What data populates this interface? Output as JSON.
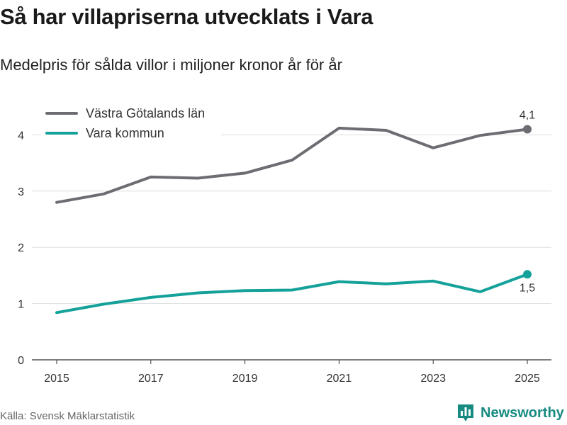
{
  "title": "Så har villapriserna utvecklats i Vara",
  "subtitle": "Medelpris för sålda villor i miljoner kronor år för år",
  "source": "Källa: Svensk Mäklarstatistik",
  "brand": {
    "name": "Newsworthy",
    "logo_icon": "bar-chart-icon",
    "color": "#178a82"
  },
  "chart_data": {
    "type": "line",
    "x": [
      2015,
      2016,
      2017,
      2018,
      2019,
      2020,
      2021,
      2022,
      2023,
      2024,
      2025
    ],
    "x_ticks": [
      2015,
      2017,
      2019,
      2021,
      2023,
      2025
    ],
    "x_tick_labels": [
      "2015",
      "2017",
      "2019",
      "2021",
      "2023",
      "2025"
    ],
    "y_ticks": [
      0,
      1,
      2,
      3,
      4
    ],
    "y_tick_labels": [
      "0",
      "1",
      "2",
      "3",
      "4"
    ],
    "ylim": [
      0,
      4.4
    ],
    "xlabel": "",
    "ylabel": "",
    "grid": true,
    "legend": "top-left",
    "series": [
      {
        "name": "Västra Götalands län",
        "color": "#6d6c72",
        "values": [
          2.8,
          2.95,
          3.25,
          3.23,
          3.32,
          3.55,
          4.12,
          4.08,
          3.77,
          3.99,
          4.1
        ],
        "end_label": "4,1"
      },
      {
        "name": "Vara kommun",
        "color": "#14a19a",
        "values": [
          0.84,
          0.99,
          1.11,
          1.19,
          1.23,
          1.24,
          1.39,
          1.35,
          1.4,
          1.21,
          1.52
        ],
        "end_label": "1,5"
      }
    ]
  }
}
